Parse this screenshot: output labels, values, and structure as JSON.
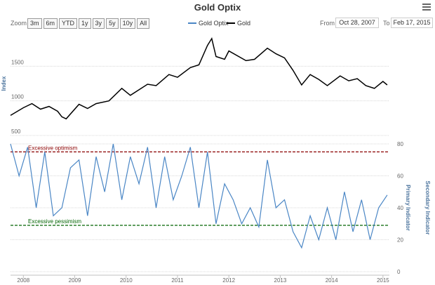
{
  "header": {
    "title": "Gold Optix"
  },
  "range_selector": {
    "zoom_label": "Zoom",
    "buttons": [
      "3m",
      "6m",
      "YTD",
      "1y",
      "3y",
      "5y",
      "10y",
      "All"
    ],
    "from_label": "From",
    "from_value": "Oct 28, 2007",
    "to_label": "To",
    "to_value": "Feb 17, 2015"
  },
  "chart_data": [
    {
      "type": "line",
      "ylabel": "Index",
      "ylim": [
        500,
        2000
      ],
      "yticks": [
        500,
        1000,
        1500
      ],
      "x_ticks": [
        "2008",
        "2009",
        "2010",
        "2011",
        "2012",
        "2013",
        "2014",
        "2015"
      ],
      "legend": "top-center",
      "series": [
        {
          "name": "Gold",
          "color": "#000000",
          "x": [
            "2007-10",
            "2008-01",
            "2008-03",
            "2008-05",
            "2008-07",
            "2008-09",
            "2008-10",
            "2008-11",
            "2009-02",
            "2009-04",
            "2009-06",
            "2009-09",
            "2009-12",
            "2010-02",
            "2010-06",
            "2010-08",
            "2010-11",
            "2011-01",
            "2011-04",
            "2011-06",
            "2011-08",
            "2011-09",
            "2011-10",
            "2011-12",
            "2012-01",
            "2012-05",
            "2012-07",
            "2012-10",
            "2012-12",
            "2013-02",
            "2013-04",
            "2013-06",
            "2013-08",
            "2013-10",
            "2013-12",
            "2014-03",
            "2014-05",
            "2014-07",
            "2014-09",
            "2014-11",
            "2015-01",
            "2015-02"
          ],
          "values": [
            790,
            900,
            960,
            880,
            920,
            850,
            770,
            740,
            950,
            890,
            960,
            1000,
            1180,
            1080,
            1240,
            1220,
            1380,
            1340,
            1480,
            1520,
            1800,
            1900,
            1640,
            1600,
            1720,
            1580,
            1600,
            1760,
            1680,
            1620,
            1440,
            1230,
            1380,
            1310,
            1220,
            1360,
            1290,
            1320,
            1220,
            1180,
            1280,
            1230
          ]
        }
      ]
    },
    {
      "type": "line",
      "ylabel": "Primary Indicator",
      "y2label": "Secondary Indicator",
      "ylim": [
        0,
        80
      ],
      "yticks": [
        0,
        20,
        40,
        60,
        80
      ],
      "x_ticks": [
        "2008",
        "2009",
        "2010",
        "2011",
        "2012",
        "2013",
        "2014",
        "2015"
      ],
      "annotations": [
        {
          "text": "Excessive optimism",
          "y": 75,
          "color": "#8b0000"
        },
        {
          "text": "Excessive pessimism",
          "y": 29,
          "color": "#006400"
        }
      ],
      "series": [
        {
          "name": "Gold Optix",
          "color": "#4a86c5",
          "x": [
            "2007-10",
            "2007-12",
            "2008-02",
            "2008-04",
            "2008-06",
            "2008-08",
            "2008-10",
            "2008-12",
            "2009-02",
            "2009-04",
            "2009-06",
            "2009-08",
            "2009-10",
            "2009-12",
            "2010-02",
            "2010-04",
            "2010-06",
            "2010-08",
            "2010-10",
            "2010-12",
            "2011-02",
            "2011-04",
            "2011-06",
            "2011-08",
            "2011-10",
            "2011-12",
            "2012-02",
            "2012-04",
            "2012-06",
            "2012-08",
            "2012-10",
            "2012-12",
            "2013-02",
            "2013-04",
            "2013-06",
            "2013-08",
            "2013-10",
            "2013-12",
            "2014-02",
            "2014-04",
            "2014-06",
            "2014-08",
            "2014-10",
            "2014-12",
            "2015-02"
          ],
          "values": [
            80,
            60,
            78,
            40,
            75,
            35,
            40,
            65,
            70,
            35,
            72,
            50,
            80,
            45,
            72,
            55,
            78,
            40,
            72,
            45,
            60,
            78,
            40,
            75,
            30,
            55,
            45,
            30,
            40,
            28,
            70,
            40,
            45,
            25,
            15,
            35,
            20,
            40,
            20,
            50,
            25,
            45,
            20,
            40,
            48
          ]
        }
      ]
    }
  ]
}
